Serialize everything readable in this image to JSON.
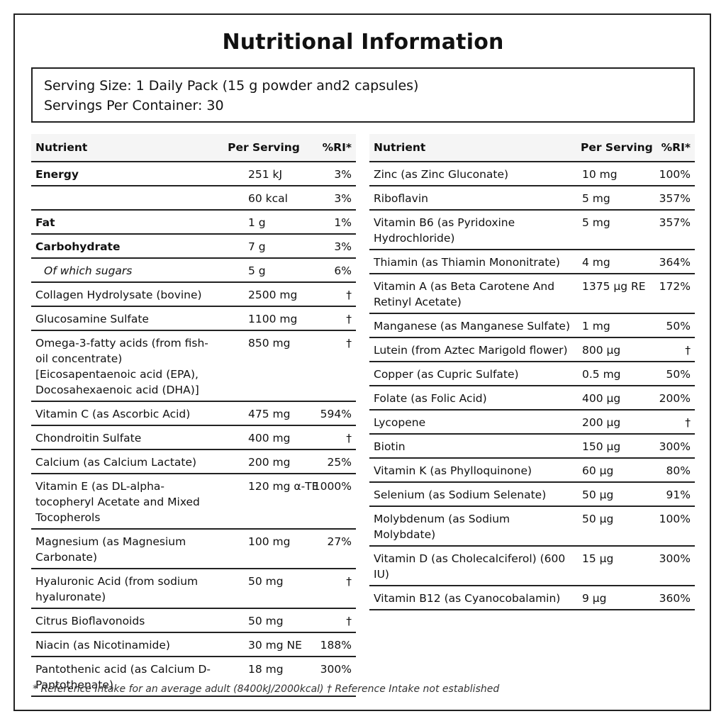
{
  "title": "Nutritional Information",
  "serving": {
    "size": "Serving Size: 1 Daily Pack (15 g powder and2 capsules)",
    "per_container": "Servings Per Container: 30"
  },
  "headers": {
    "nutrient": "Nutrient",
    "per_serving": "Per Serving",
    "ri": "%RI*"
  },
  "left_rows": [
    {
      "name": "Energy",
      "value": "251 kJ",
      "ri": "3%",
      "style": "bold"
    },
    {
      "name": "",
      "value": "60 kcal",
      "ri": "3%",
      "style": ""
    },
    {
      "name": "Fat",
      "value": "1 g",
      "ri": "1%",
      "style": "bold"
    },
    {
      "name": "Carbohydrate",
      "value": "7 g",
      "ri": "3%",
      "style": "bold"
    },
    {
      "name": "Of which sugars",
      "value": "5 g",
      "ri": "6%",
      "style": "ital"
    },
    {
      "name": "Collagen Hydrolysate (bovine)",
      "value": "2500 mg",
      "ri": "†",
      "style": ""
    },
    {
      "name": "Glucosamine Sulfate",
      "value": "1100 mg",
      "ri": "†",
      "style": ""
    },
    {
      "name": "Omega-3-fatty acids (from fish-oil concentrate) [Eicosapentaenoic acid (EPA), Docosahexaenoic acid (DHA)]",
      "value": "850 mg",
      "ri": "†",
      "style": ""
    },
    {
      "name": "Vitamin C (as Ascorbic Acid)",
      "value": "475 mg",
      "ri": "594%",
      "style": ""
    },
    {
      "name": "Chondroitin Sulfate",
      "value": "400 mg",
      "ri": "†",
      "style": ""
    },
    {
      "name": "Calcium (as Calcium Lactate)",
      "value": "200 mg",
      "ri": "25%",
      "style": ""
    },
    {
      "name": "Vitamin E (as DL-alpha-tocopheryl Acetate and Mixed Tocopherols",
      "value": "120 mg α-TE",
      "ri": "1000%",
      "style": ""
    },
    {
      "name": "Magnesium (as Magnesium Carbonate)",
      "value": "100 mg",
      "ri": "27%",
      "style": ""
    },
    {
      "name": "Hyaluronic Acid (from sodium hyaluronate)",
      "value": "50 mg",
      "ri": "†",
      "style": ""
    },
    {
      "name": "Citrus Bioflavonoids",
      "value": "50 mg",
      "ri": "†",
      "style": ""
    },
    {
      "name": "Niacin (as Nicotinamide)",
      "value": "30 mg NE",
      "ri": "188%",
      "style": ""
    },
    {
      "name": "Pantothenic acid (as Calcium D-Pantothenate)",
      "value": "18 mg",
      "ri": "300%",
      "style": ""
    }
  ],
  "right_rows": [
    {
      "name": "Zinc (as Zinc Gluconate)",
      "value": "10 mg",
      "ri": "100%",
      "style": ""
    },
    {
      "name": "Riboflavin",
      "value": "5 mg",
      "ri": "357%",
      "style": ""
    },
    {
      "name": "Vitamin B6 (as Pyridoxine Hydrochloride)",
      "value": "5 mg",
      "ri": "357%",
      "style": ""
    },
    {
      "name": "Thiamin (as Thiamin Mononitrate)",
      "value": "4 mg",
      "ri": "364%",
      "style": ""
    },
    {
      "name": "Vitamin A (as Beta Carotene And Retinyl Acetate)",
      "value": "1375 µg RE",
      "ri": "172%",
      "style": ""
    },
    {
      "name": "Manganese (as Manganese Sulfate)",
      "value": "1 mg",
      "ri": "50%",
      "style": ""
    },
    {
      "name": "Lutein (from Aztec Marigold flower)",
      "value": "800 µg",
      "ri": "†",
      "style": ""
    },
    {
      "name": "Copper (as Cupric Sulfate)",
      "value": "0.5 mg",
      "ri": "50%",
      "style": ""
    },
    {
      "name": "Folate (as Folic Acid)",
      "value": "400 µg",
      "ri": "200%",
      "style": ""
    },
    {
      "name": "Lycopene",
      "value": "200 µg",
      "ri": "†",
      "style": ""
    },
    {
      "name": "Biotin",
      "value": "150 µg",
      "ri": "300%",
      "style": ""
    },
    {
      "name": "Vitamin K (as Phylloquinone)",
      "value": "60 µg",
      "ri": "80%",
      "style": ""
    },
    {
      "name": "Selenium (as Sodium Selenate)",
      "value": "50 µg",
      "ri": "91%",
      "style": ""
    },
    {
      "name": "Molybdenum (as Sodium Molybdate)",
      "value": "50 µg",
      "ri": "100%",
      "style": ""
    },
    {
      "name": "Vitamin D (as Cholecalciferol) (600 IU)",
      "value": "15 µg",
      "ri": "300%",
      "style": ""
    },
    {
      "name": "Vitamin B12 (as Cyanocobalamin)",
      "value": "9 µg",
      "ri": "360%",
      "style": ""
    }
  ],
  "footnote": "* Reference Intake for an average adult (8400kJ/2000kcal) † Reference Intake not established"
}
